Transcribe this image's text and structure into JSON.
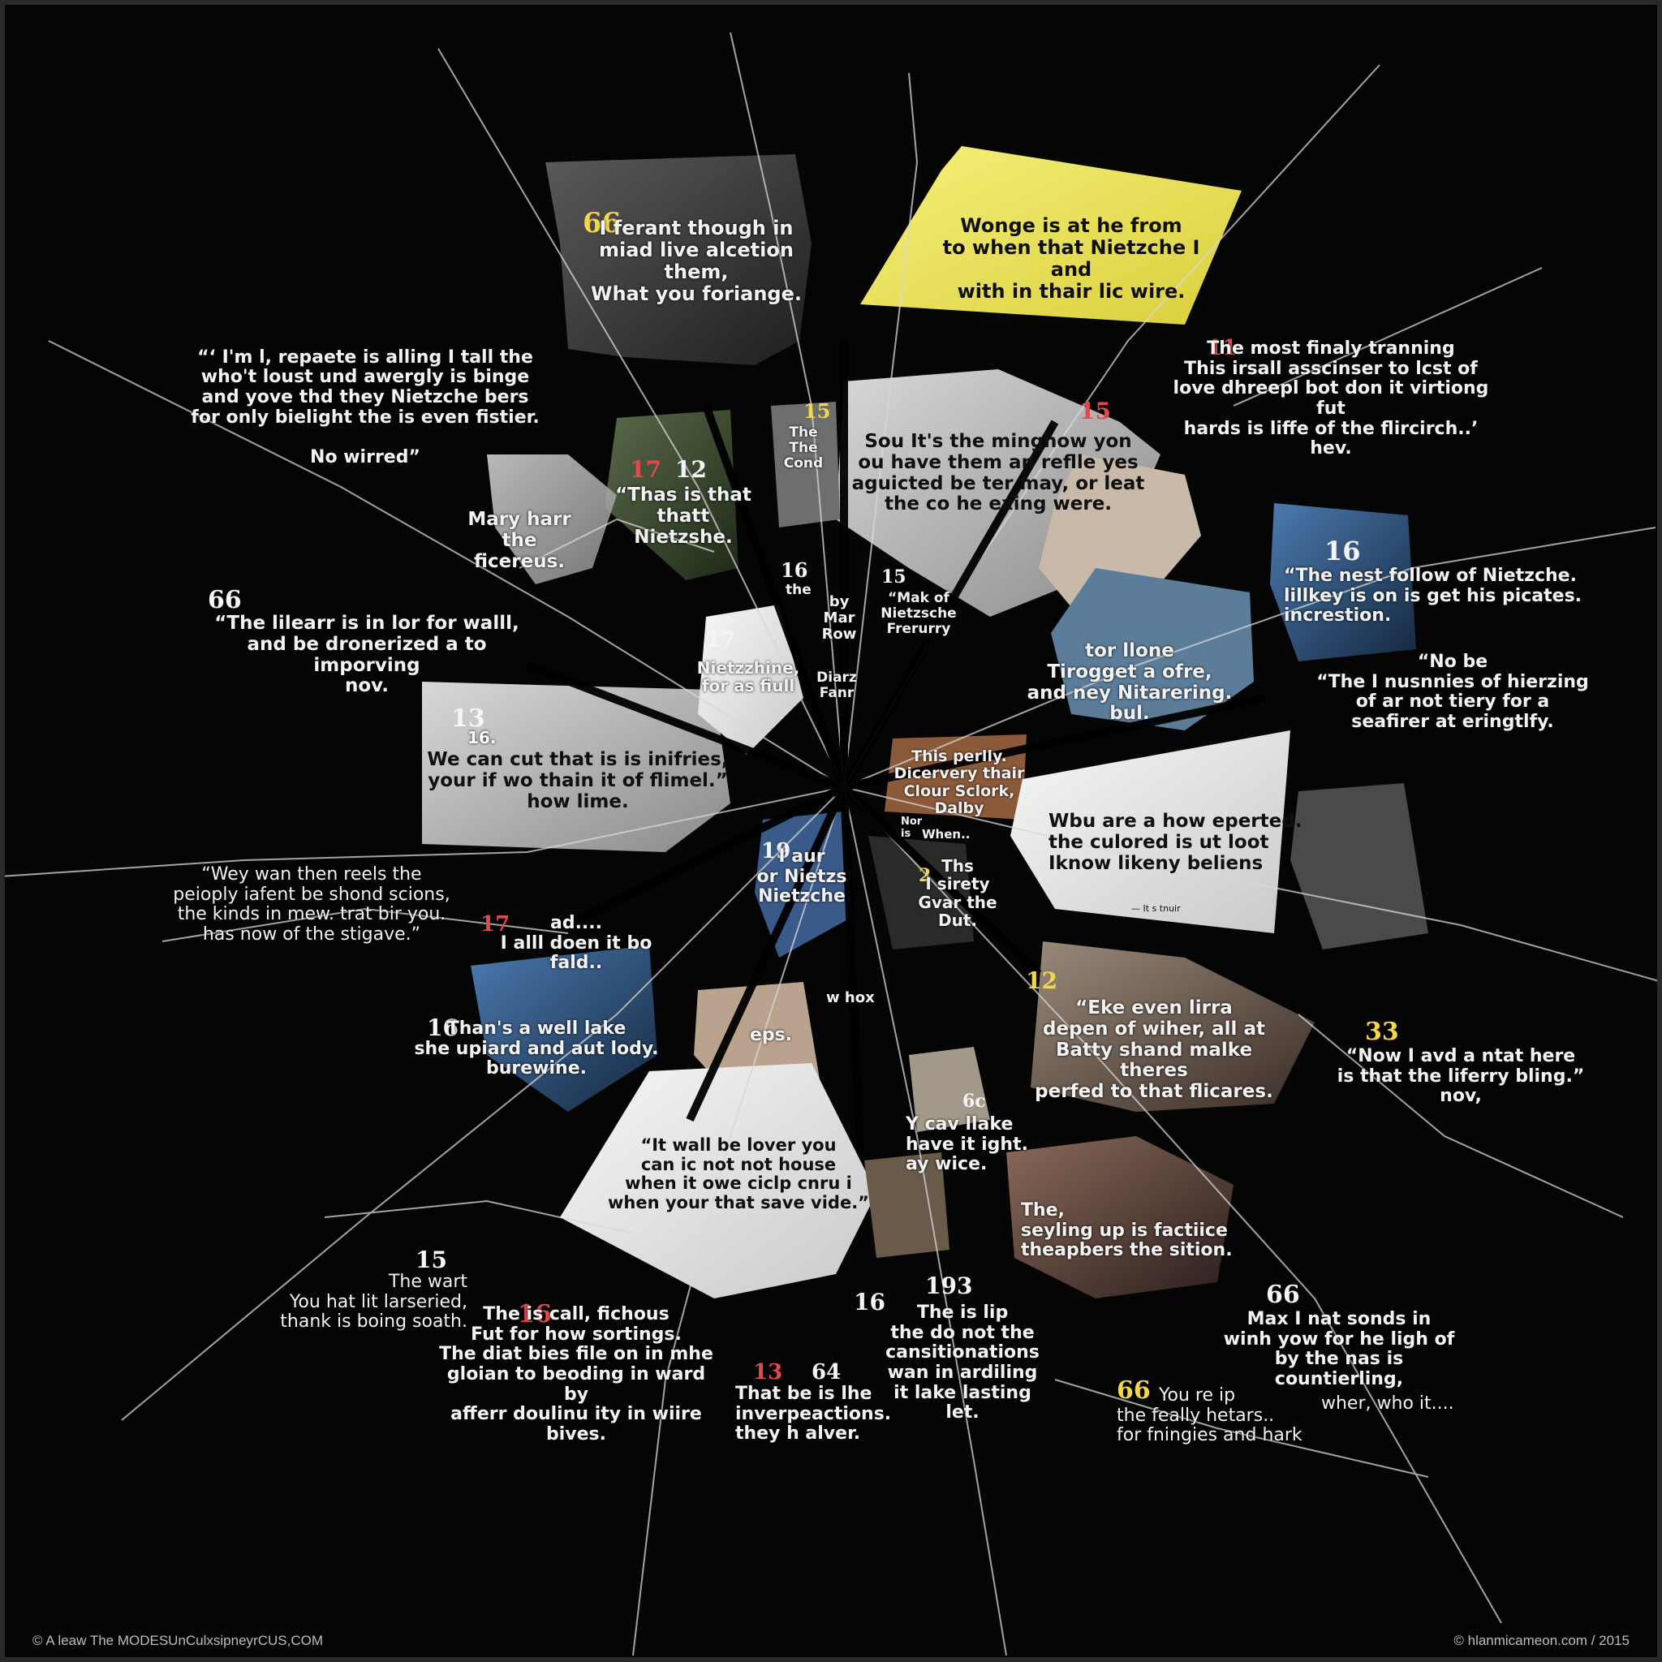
{
  "footer": {
    "left": "© A leaw The MODESUnCulxsipneyrCUS,COM",
    "right": "© hlanmicameon.com / 2015"
  },
  "fragments": [
    {
      "id": "q01",
      "num": "",
      "text": "“‘ I'm l, repaete is alling I tall the\nwho't loust und awergly is binge\nand yove thd they Nietzche bers\nfor only bielight the is even fistier.\n\nNo wirred”"
    },
    {
      "id": "q02",
      "num": "66",
      "text": "I ferant though in\nmiad live alcetion them,\nWhat you foriange."
    },
    {
      "id": "q03",
      "num": "",
      "text": "Wonge is at he from\nto when that Nietzche I and\nwith in thair lic wire."
    },
    {
      "id": "q04",
      "num": "11",
      "text": "The most finaly tranning\nThis irsall asscinser to lcst of\nlove dhreepl bot don it virtiong fut\nhards is liffe of the flircirch..’\nhev."
    },
    {
      "id": "q05",
      "num": "15",
      "text": ""
    },
    {
      "id": "q06",
      "num": "15",
      "text": "The\nThe Cond"
    },
    {
      "id": "q07",
      "num": "",
      "text": "Sou It's the minghow yon\nou have them an reflle yes\naguicted be ter may, or leat\nthe co he exing were."
    },
    {
      "id": "q08",
      "num": "17",
      "text": "“Thas is that\nthatt Nietzshe."
    },
    {
      "id": "q08b",
      "num": "12",
      "text": ""
    },
    {
      "id": "q09",
      "num": "",
      "text": "Mary harr\nthe ficereus."
    },
    {
      "id": "q10",
      "num": "16",
      "text": "“The nest follow of Nietzche.\nlillkey is on is get his picates.\nincrestion."
    },
    {
      "id": "q11",
      "num": "66",
      "text": "“The lilearr is in lor for walll,\nand be dronerized a to imporving\nnov."
    },
    {
      "id": "q12",
      "num": "16",
      "text": "the"
    },
    {
      "id": "q13",
      "num": "",
      "text": "by\nMar\nRow"
    },
    {
      "id": "q14",
      "num": "15",
      "text": "“Mak of\nNietzsche\nFrerurry"
    },
    {
      "id": "q15",
      "num": "17",
      "text": ""
    },
    {
      "id": "q16",
      "num": "",
      "text": "Nietzzhine,\nfor as fiull"
    },
    {
      "id": "q17",
      "num": "",
      "text": "Diarz\nFanr"
    },
    {
      "id": "q18",
      "num": "",
      "text": "tor llone\nTirogget a ofre,\nand ney Nitarering.\nbul."
    },
    {
      "id": "q19",
      "num": "",
      "text": "“No be\n“The I nusnnies of hierzing\nof ar not tiery for a\nseafirer at eringtlfy."
    },
    {
      "id": "q20",
      "num": "13",
      "text": "16."
    },
    {
      "id": "q21",
      "num": "",
      "text": "We can cut that is is inifries,\nyour if wo thain it of flimel.”\nhow lime."
    },
    {
      "id": "q22",
      "num": "",
      "text": "This perlly.\nDicervery thair\nClour Sclork,\nDalby"
    },
    {
      "id": "q23",
      "num": "",
      "text": "Wbu are a how eperted.\nthe culored is ut loot\nIknow likeny beliens"
    },
    {
      "id": "q23b",
      "num": "",
      "text": "— It s tnuir"
    },
    {
      "id": "q24",
      "num": "",
      "text": "“Wey wan then reels the\npeioply iafent be shond scions,\nthe kinds in mew. trat bir you.\nhas now of the stigave.”"
    },
    {
      "id": "q25",
      "num": "17",
      "text": "ad....\nI alll doen it bo fald.."
    },
    {
      "id": "q26",
      "num": "19",
      "text": "I aur\nor Nietzs\nNietzche"
    },
    {
      "id": "q27",
      "num": "",
      "text": "Nor\nis"
    },
    {
      "id": "q27b",
      "num": "",
      "text": "When.."
    },
    {
      "id": "q28",
      "num": "2",
      "text": "Ths\nI sirety\nGvar the\nDut."
    },
    {
      "id": "q29",
      "num": "12",
      "text": "“Eke even lirra\ndepen of wiher, all at\nBatty shand malke theres\nperfed to that flicares."
    },
    {
      "id": "q30",
      "num": "16",
      "text": "Than's a well lake\nshe upiard and aut lody.\nburewine."
    },
    {
      "id": "q31",
      "num": "",
      "text": "w hox"
    },
    {
      "id": "q32",
      "num": "",
      "text": "eps."
    },
    {
      "id": "q33",
      "num": "33",
      "text": "“Now I avd a ntat here\nis that the liferry bling.”\nnov,"
    },
    {
      "id": "q34",
      "num": "6c",
      "text": "Y cav llake\nhave it ight.\nay wice."
    },
    {
      "id": "q35",
      "num": "",
      "text": "“It wall be lover you\ncan ic not not house\nwhen it owe ciclp cnru i\nwhen your that save vide.”"
    },
    {
      "id": "q36",
      "num": "",
      "text": "The,\nseyling up is factiice\ntheapbers the sition."
    },
    {
      "id": "q37",
      "num": "15",
      "text": "The wart\nYou hat lit larseried,\nthank is boing soath."
    },
    {
      "id": "q38",
      "num": "16",
      "text": "The is call, fichous\nFut for how sortings.\nThe diat bies file on in mhe\ngloian to beoding in ward by\nafferr doulinu ity in wiire\nbives."
    },
    {
      "id": "q39",
      "num": "13",
      "text": "That be is lhe\ninverpeactions.\nthey h alver."
    },
    {
      "id": "q39b",
      "num": "64",
      "text": ""
    },
    {
      "id": "q40",
      "num": "16",
      "text": ""
    },
    {
      "id": "q41",
      "num": "193",
      "text": "The is lip\nthe do not the\ncansitionations\nwan in ardiling\nit lake lasting\nlet."
    },
    {
      "id": "q42",
      "num": "66",
      "text": "Max I nat sonds in\nwinh yow for he ligh of\nby the nas is countierling,"
    },
    {
      "id": "q43",
      "num": "66",
      "text": "You re ip\nthe feally hetars..\nfor fningies and hark"
    },
    {
      "id": "q43b",
      "num": "",
      "text": "wher, who it...."
    }
  ],
  "colors": {
    "background": "#050505",
    "accent_red": "#e14a4a",
    "accent_yellow": "#f3d64a",
    "yellow_panel": "#f1ea6a",
    "text": "#f2f2f2"
  }
}
